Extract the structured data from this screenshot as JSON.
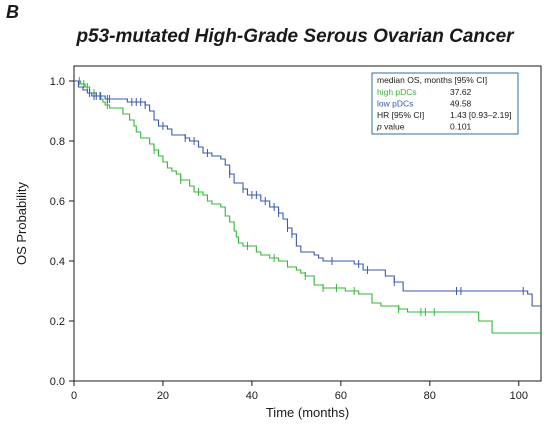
{
  "panel_label": "B",
  "colors": {
    "high": "#35b538",
    "low": "#3a58b0",
    "axis": "#1a1a1a",
    "legend_border": "#2e6fa7"
  },
  "chart_data": {
    "type": "line",
    "title": "p53-mutated High-Grade Serous Ovarian Cancer",
    "xlabel": "Time (months)",
    "ylabel": "OS Probability",
    "xlim": [
      0,
      105
    ],
    "ylim": [
      0,
      1.05
    ],
    "x_ticks": [
      0,
      20,
      40,
      60,
      80,
      100
    ],
    "y_ticks": [
      0.0,
      0.2,
      0.4,
      0.6,
      0.8,
      1.0
    ],
    "x_tick_labels": [
      "0",
      "20",
      "40",
      "60",
      "80",
      "100"
    ],
    "y_tick_labels": [
      "0.0",
      "0.2",
      "0.4",
      "0.6",
      "0.8",
      "1.0"
    ],
    "series": [
      {
        "name": "high pDCs",
        "color": "#35b538",
        "steps": [
          [
            0,
            1.0
          ],
          [
            1.5,
            0.99
          ],
          [
            2.5,
            0.98
          ],
          [
            3.5,
            0.96
          ],
          [
            5,
            0.95
          ],
          [
            6,
            0.94
          ],
          [
            6.5,
            0.93
          ],
          [
            7,
            0.92
          ],
          [
            8,
            0.91
          ],
          [
            11,
            0.89
          ],
          [
            12.5,
            0.87
          ],
          [
            13.5,
            0.85
          ],
          [
            14,
            0.83
          ],
          [
            15,
            0.81
          ],
          [
            17,
            0.79
          ],
          [
            18,
            0.77
          ],
          [
            19,
            0.75
          ],
          [
            20,
            0.73
          ],
          [
            21,
            0.71
          ],
          [
            22,
            0.7
          ],
          [
            23,
            0.69
          ],
          [
            24,
            0.67
          ],
          [
            26,
            0.65
          ],
          [
            27,
            0.63
          ],
          [
            29,
            0.62
          ],
          [
            30,
            0.6
          ],
          [
            31,
            0.59
          ],
          [
            33,
            0.58
          ],
          [
            34,
            0.55
          ],
          [
            35,
            0.53
          ],
          [
            36,
            0.5
          ],
          [
            36.5,
            0.48
          ],
          [
            37,
            0.46
          ],
          [
            38,
            0.45
          ],
          [
            41,
            0.43
          ],
          [
            42,
            0.42
          ],
          [
            44,
            0.41
          ],
          [
            46,
            0.4
          ],
          [
            48,
            0.38
          ],
          [
            50,
            0.37
          ],
          [
            51,
            0.36
          ],
          [
            52,
            0.35
          ],
          [
            54,
            0.32
          ],
          [
            56,
            0.31
          ],
          [
            61,
            0.3
          ],
          [
            64,
            0.29
          ],
          [
            67,
            0.26
          ],
          [
            69,
            0.25
          ],
          [
            73,
            0.24
          ],
          [
            75,
            0.23
          ],
          [
            91,
            0.2
          ],
          [
            94,
            0.16
          ],
          [
            105,
            0.16
          ]
        ],
        "censor_x": [
          1.2,
          2.2,
          3.0,
          4.5,
          5.8,
          7.5,
          18,
          24,
          28,
          39,
          45,
          52,
          56,
          59,
          63,
          73,
          78,
          79,
          81
        ]
      },
      {
        "name": "low pDCs",
        "color": "#3a58b0",
        "steps": [
          [
            0,
            1.0
          ],
          [
            1,
            0.98
          ],
          [
            2,
            0.97
          ],
          [
            3,
            0.96
          ],
          [
            4,
            0.95
          ],
          [
            7,
            0.94
          ],
          [
            12,
            0.93
          ],
          [
            16,
            0.92
          ],
          [
            17,
            0.9
          ],
          [
            18,
            0.87
          ],
          [
            19,
            0.85
          ],
          [
            21,
            0.84
          ],
          [
            22,
            0.82
          ],
          [
            25,
            0.81
          ],
          [
            26,
            0.8
          ],
          [
            28,
            0.78
          ],
          [
            29,
            0.76
          ],
          [
            31,
            0.75
          ],
          [
            33,
            0.74
          ],
          [
            34,
            0.72
          ],
          [
            35,
            0.69
          ],
          [
            36,
            0.66
          ],
          [
            38,
            0.64
          ],
          [
            39,
            0.62
          ],
          [
            42,
            0.6
          ],
          [
            44,
            0.58
          ],
          [
            46,
            0.56
          ],
          [
            47,
            0.54
          ],
          [
            48,
            0.51
          ],
          [
            49,
            0.49
          ],
          [
            50,
            0.45
          ],
          [
            51,
            0.43
          ],
          [
            54,
            0.42
          ],
          [
            55,
            0.41
          ],
          [
            56,
            0.4
          ],
          [
            63,
            0.39
          ],
          [
            65,
            0.37
          ],
          [
            70,
            0.35
          ],
          [
            72,
            0.33
          ],
          [
            74,
            0.3
          ],
          [
            102,
            0.29
          ],
          [
            103,
            0.25
          ],
          [
            105,
            0.25
          ]
        ],
        "censor_x": [
          3.5,
          4.5,
          5,
          6,
          7.5,
          8,
          13,
          14,
          15,
          16,
          20,
          25,
          27,
          30,
          35,
          38,
          40,
          41,
          43,
          45,
          46,
          48,
          49,
          58,
          64,
          66,
          72,
          86,
          87,
          101
        ]
      }
    ],
    "legend": {
      "header": "median OS, months [95% CI]",
      "rows": [
        {
          "label": "high pDCs",
          "value": "37.62",
          "color": "#35b538"
        },
        {
          "label": "low pDCs",
          "value": "49.58",
          "color": "#3a58b0"
        },
        {
          "label": "HR [95% CI]",
          "value": "1.43 [0.93–2.19]",
          "color": "#1a1a1a"
        },
        {
          "label_italic": "p",
          "label": " value",
          "value": "0.101",
          "color": "#1a1a1a"
        }
      ],
      "placement": "top-right"
    }
  }
}
